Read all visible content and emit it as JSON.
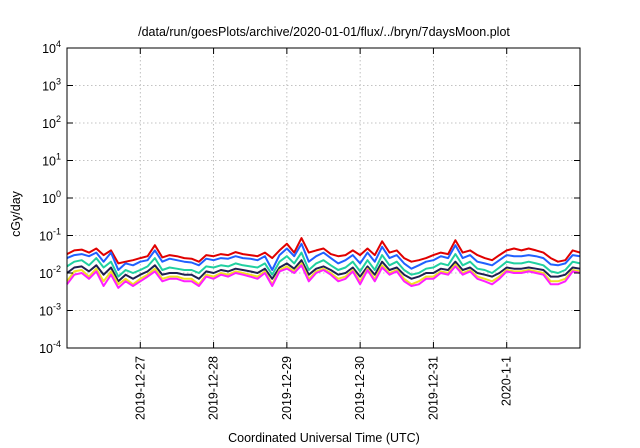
{
  "chart_data": {
    "type": "line",
    "title": "/data/run/goesPlots/archive/2020-01-01/flux/../bryn/7daysMoon.plot",
    "xlabel": "Coordinated Universal Time (UTC)",
    "ylabel": "cGy/day",
    "yscale": "log",
    "ylim": [
      0.0001,
      10000
    ],
    "xlim": [
      0,
      7
    ],
    "grid": true,
    "y_ticks": [
      {
        "value": 0.0001,
        "base": "10",
        "exp": "-4"
      },
      {
        "value": 0.001,
        "base": "10",
        "exp": "-3"
      },
      {
        "value": 0.01,
        "base": "10",
        "exp": "-2"
      },
      {
        "value": 0.1,
        "base": "10",
        "exp": "-1"
      },
      {
        "value": 1,
        "base": "10",
        "exp": "0"
      },
      {
        "value": 10,
        "base": "10",
        "exp": "1"
      },
      {
        "value": 100,
        "base": "10",
        "exp": "2"
      },
      {
        "value": 1000,
        "base": "10",
        "exp": "3"
      },
      {
        "value": 10000,
        "base": "10",
        "exp": "4"
      }
    ],
    "x_ticks": [
      {
        "label": "2019-12-27",
        "x": 1
      },
      {
        "label": "2019-12-28",
        "x": 2
      },
      {
        "label": "2019-12-29",
        "x": 3
      },
      {
        "label": "2019-12-30",
        "x": 4
      },
      {
        "label": "2019-12-31",
        "x": 5
      },
      {
        "label": "2020-1-1",
        "x": 6
      }
    ],
    "x": [
      0.0,
      0.1,
      0.2,
      0.3,
      0.4,
      0.5,
      0.6,
      0.7,
      0.8,
      0.9,
      1.0,
      1.1,
      1.2,
      1.3,
      1.4,
      1.5,
      1.6,
      1.7,
      1.8,
      1.9,
      2.0,
      2.1,
      2.2,
      2.3,
      2.4,
      2.5,
      2.6,
      2.7,
      2.8,
      2.9,
      3.0,
      3.1,
      3.2,
      3.3,
      3.4,
      3.5,
      3.6,
      3.7,
      3.8,
      3.9,
      4.0,
      4.1,
      4.2,
      4.3,
      4.4,
      4.5,
      4.6,
      4.7,
      4.8,
      4.9,
      5.0,
      5.1,
      5.2,
      5.3,
      5.4,
      5.5,
      5.6,
      5.7,
      5.8,
      5.9,
      6.0,
      6.1,
      6.2,
      6.3,
      6.4,
      6.5,
      6.6,
      6.7,
      6.8,
      6.9,
      7.0
    ],
    "series": [
      {
        "color": "#e00000",
        "values": [
          0.032,
          0.04,
          0.042,
          0.035,
          0.045,
          0.03,
          0.04,
          0.018,
          0.02,
          0.022,
          0.025,
          0.028,
          0.055,
          0.026,
          0.03,
          0.028,
          0.025,
          0.024,
          0.02,
          0.03,
          0.028,
          0.032,
          0.03,
          0.036,
          0.032,
          0.03,
          0.028,
          0.035,
          0.025,
          0.04,
          0.06,
          0.035,
          0.085,
          0.035,
          0.04,
          0.045,
          0.032,
          0.028,
          0.03,
          0.04,
          0.03,
          0.045,
          0.03,
          0.07,
          0.035,
          0.04,
          0.025,
          0.02,
          0.022,
          0.025,
          0.03,
          0.035,
          0.032,
          0.075,
          0.035,
          0.04,
          0.03,
          0.025,
          0.022,
          0.03,
          0.04,
          0.045,
          0.04,
          0.045,
          0.04,
          0.035,
          0.025,
          0.02,
          0.022,
          0.04,
          0.035
        ]
      },
      {
        "color": "#2060ff",
        "values": [
          0.025,
          0.03,
          0.032,
          0.028,
          0.035,
          0.02,
          0.035,
          0.012,
          0.018,
          0.016,
          0.02,
          0.022,
          0.04,
          0.02,
          0.024,
          0.022,
          0.02,
          0.019,
          0.016,
          0.024,
          0.022,
          0.025,
          0.024,
          0.028,
          0.025,
          0.024,
          0.022,
          0.028,
          0.012,
          0.03,
          0.045,
          0.028,
          0.06,
          0.02,
          0.028,
          0.035,
          0.025,
          0.018,
          0.022,
          0.03,
          0.018,
          0.035,
          0.02,
          0.05,
          0.025,
          0.03,
          0.018,
          0.013,
          0.016,
          0.02,
          0.022,
          0.028,
          0.025,
          0.055,
          0.025,
          0.03,
          0.02,
          0.018,
          0.016,
          0.022,
          0.03,
          0.028,
          0.028,
          0.03,
          0.028,
          0.025,
          0.017,
          0.016,
          0.018,
          0.03,
          0.028
        ]
      },
      {
        "color": "#20d0a0",
        "values": [
          0.015,
          0.02,
          0.022,
          0.016,
          0.025,
          0.014,
          0.02,
          0.008,
          0.012,
          0.01,
          0.012,
          0.015,
          0.025,
          0.012,
          0.014,
          0.013,
          0.012,
          0.012,
          0.01,
          0.015,
          0.014,
          0.016,
          0.015,
          0.018,
          0.016,
          0.015,
          0.014,
          0.018,
          0.009,
          0.02,
          0.028,
          0.018,
          0.035,
          0.012,
          0.018,
          0.022,
          0.016,
          0.012,
          0.014,
          0.02,
          0.011,
          0.022,
          0.012,
          0.03,
          0.016,
          0.02,
          0.012,
          0.009,
          0.01,
          0.013,
          0.014,
          0.018,
          0.016,
          0.032,
          0.016,
          0.02,
          0.013,
          0.012,
          0.01,
          0.014,
          0.02,
          0.018,
          0.018,
          0.02,
          0.018,
          0.016,
          0.011,
          0.01,
          0.012,
          0.02,
          0.018
        ]
      },
      {
        "color": "#202050",
        "values": [
          0.01,
          0.014,
          0.015,
          0.011,
          0.016,
          0.009,
          0.014,
          0.006,
          0.009,
          0.007,
          0.009,
          0.011,
          0.016,
          0.009,
          0.01,
          0.01,
          0.009,
          0.009,
          0.007,
          0.011,
          0.01,
          0.012,
          0.011,
          0.013,
          0.012,
          0.011,
          0.01,
          0.013,
          0.007,
          0.014,
          0.018,
          0.013,
          0.022,
          0.009,
          0.013,
          0.015,
          0.012,
          0.009,
          0.01,
          0.014,
          0.008,
          0.015,
          0.009,
          0.02,
          0.012,
          0.014,
          0.009,
          0.007,
          0.008,
          0.01,
          0.01,
          0.013,
          0.012,
          0.02,
          0.012,
          0.014,
          0.01,
          0.009,
          0.008,
          0.01,
          0.014,
          0.013,
          0.013,
          0.014,
          0.013,
          0.012,
          0.008,
          0.008,
          0.009,
          0.014,
          0.013
        ]
      },
      {
        "color": "#f0e020",
        "values": [
          0.006,
          0.011,
          0.012,
          0.008,
          0.013,
          0.006,
          0.011,
          0.005,
          0.007,
          0.005,
          0.007,
          0.009,
          0.013,
          0.007,
          0.008,
          0.008,
          0.007,
          0.007,
          0.005,
          0.009,
          0.008,
          0.01,
          0.009,
          0.011,
          0.01,
          0.009,
          0.008,
          0.011,
          0.005,
          0.012,
          0.015,
          0.011,
          0.018,
          0.007,
          0.011,
          0.013,
          0.01,
          0.007,
          0.008,
          0.012,
          0.006,
          0.013,
          0.007,
          0.016,
          0.01,
          0.012,
          0.007,
          0.005,
          0.006,
          0.008,
          0.008,
          0.011,
          0.01,
          0.017,
          0.01,
          0.012,
          0.008,
          0.007,
          0.006,
          0.008,
          0.012,
          0.011,
          0.011,
          0.012,
          0.011,
          0.01,
          0.006,
          0.006,
          0.007,
          0.012,
          0.011
        ]
      },
      {
        "color": "#ff20ff",
        "values": [
          0.005,
          0.009,
          0.01,
          0.007,
          0.011,
          0.0045,
          0.009,
          0.004,
          0.006,
          0.0045,
          0.006,
          0.008,
          0.011,
          0.006,
          0.007,
          0.007,
          0.006,
          0.006,
          0.0045,
          0.008,
          0.007,
          0.009,
          0.008,
          0.01,
          0.009,
          0.008,
          0.007,
          0.01,
          0.0045,
          0.011,
          0.013,
          0.01,
          0.016,
          0.006,
          0.01,
          0.012,
          0.009,
          0.006,
          0.007,
          0.011,
          0.005,
          0.012,
          0.006,
          0.014,
          0.009,
          0.011,
          0.006,
          0.0045,
          0.005,
          0.007,
          0.007,
          0.01,
          0.009,
          0.015,
          0.009,
          0.011,
          0.007,
          0.006,
          0.005,
          0.007,
          0.011,
          0.01,
          0.01,
          0.011,
          0.01,
          0.009,
          0.005,
          0.005,
          0.006,
          0.011,
          0.01
        ]
      }
    ]
  }
}
